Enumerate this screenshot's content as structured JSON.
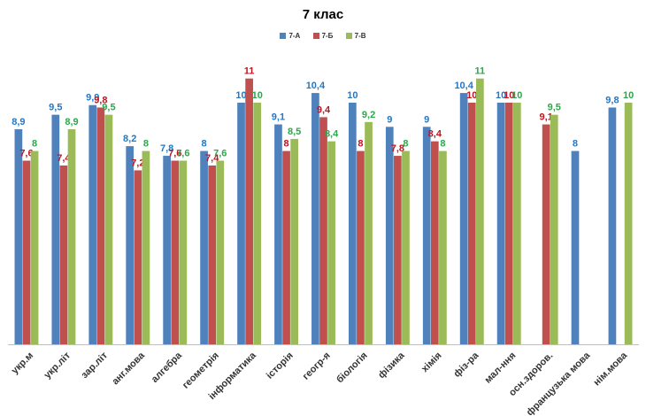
{
  "chart_data": {
    "type": "bar",
    "title": "7 клас",
    "xlabel": "",
    "ylabel": "",
    "ylim": [
      0,
      11.5
    ],
    "grid": false,
    "legend_position": "top-center",
    "categories": [
      "укр.м",
      "укр.літ",
      "зар.літ",
      "анг.мова",
      "алгебра",
      "геометрія",
      "інформатика",
      "історія",
      "геогр-я",
      "біологія",
      "фізика",
      "хімія",
      "фіз-ра",
      "мал-ння",
      "осн.здоров.",
      "французька мова",
      "нім.мова"
    ],
    "series": [
      {
        "name": "7-А",
        "color": "#4f81bd",
        "label_color": "#1f78c8",
        "values": [
          8.9,
          9.5,
          9.9,
          8.2,
          7.8,
          8,
          10,
          9.1,
          10.4,
          10,
          9,
          9,
          10.4,
          10,
          null,
          8,
          9.8
        ],
        "labels": [
          "8,9",
          "9,5",
          "9,9",
          "8,2",
          "7,8",
          "8",
          "10",
          "9,1",
          "10,4",
          "10",
          "9",
          "9",
          "10,4",
          "10",
          "",
          "8",
          "9,8"
        ]
      },
      {
        "name": "7-Б",
        "color": "#c0504d",
        "label_color": "#c0141e",
        "values": [
          7.6,
          7.4,
          9.8,
          7.2,
          7.6,
          7.4,
          11,
          8,
          9.4,
          8,
          7.8,
          8.4,
          10,
          10,
          9.1,
          null,
          null
        ],
        "labels": [
          "7,6",
          "7,4",
          "9,8",
          "7,2",
          "7,6",
          "7,4",
          "11",
          "8",
          "9,4",
          "8",
          "7,8",
          "8,4",
          "10",
          "10",
          "9,1",
          "",
          ""
        ]
      },
      {
        "name": "7-В",
        "color": "#9bbb59",
        "label_color": "#2aa84a",
        "values": [
          8,
          8.9,
          9.5,
          8,
          7.6,
          7.6,
          10,
          8.5,
          8.4,
          9.2,
          8,
          8,
          11,
          10,
          9.5,
          null,
          10
        ],
        "labels": [
          "8",
          "8,9",
          "9,5",
          "8",
          "7,6",
          "7,6",
          "10",
          "8,5",
          "8,4",
          "9,2",
          "8",
          "8",
          "11",
          "10",
          "9,5",
          "",
          "10"
        ]
      }
    ]
  }
}
